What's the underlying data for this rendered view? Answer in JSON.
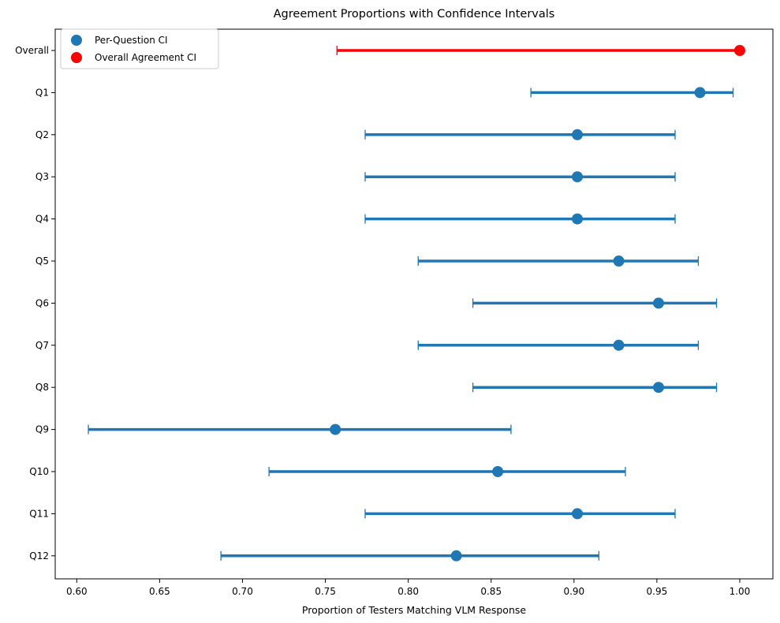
{
  "chart_data": {
    "type": "scatter",
    "orientation": "horizontal-errorbar",
    "title": "Agreement Proportions with Confidence Intervals",
    "xlabel": "Proportion of Testers Matching VLM Response",
    "ylabel": "",
    "xlim": [
      0.587,
      1.02
    ],
    "xticks": [
      "0.60",
      "0.65",
      "0.70",
      "0.75",
      "0.80",
      "0.85",
      "0.90",
      "0.95",
      "1.00"
    ],
    "grid": false,
    "legend_position": "top-left",
    "categories": [
      "Overall",
      "Q1",
      "Q2",
      "Q3",
      "Q4",
      "Q5",
      "Q6",
      "Q7",
      "Q8",
      "Q9",
      "Q10",
      "Q11",
      "Q12"
    ],
    "series": [
      {
        "name": "Per-Question CI",
        "color": "#1f77b4",
        "points": [
          {
            "label": "Q1",
            "value": 0.976,
            "ci_low": 0.874,
            "ci_high": 0.996
          },
          {
            "label": "Q2",
            "value": 0.902,
            "ci_low": 0.774,
            "ci_high": 0.961
          },
          {
            "label": "Q3",
            "value": 0.902,
            "ci_low": 0.774,
            "ci_high": 0.961
          },
          {
            "label": "Q4",
            "value": 0.902,
            "ci_low": 0.774,
            "ci_high": 0.961
          },
          {
            "label": "Q5",
            "value": 0.927,
            "ci_low": 0.806,
            "ci_high": 0.975
          },
          {
            "label": "Q6",
            "value": 0.951,
            "ci_low": 0.839,
            "ci_high": 0.986
          },
          {
            "label": "Q7",
            "value": 0.927,
            "ci_low": 0.806,
            "ci_high": 0.975
          },
          {
            "label": "Q8",
            "value": 0.951,
            "ci_low": 0.839,
            "ci_high": 0.986
          },
          {
            "label": "Q9",
            "value": 0.756,
            "ci_low": 0.607,
            "ci_high": 0.862
          },
          {
            "label": "Q10",
            "value": 0.854,
            "ci_low": 0.716,
            "ci_high": 0.931
          },
          {
            "label": "Q11",
            "value": 0.902,
            "ci_low": 0.774,
            "ci_high": 0.961
          },
          {
            "label": "Q12",
            "value": 0.829,
            "ci_low": 0.687,
            "ci_high": 0.915
          }
        ]
      },
      {
        "name": "Overall Agreement CI",
        "color": "#ff0000",
        "points": [
          {
            "label": "Overall",
            "value": 1.0,
            "ci_low": 0.757,
            "ci_high": 1.0
          }
        ]
      }
    ]
  }
}
